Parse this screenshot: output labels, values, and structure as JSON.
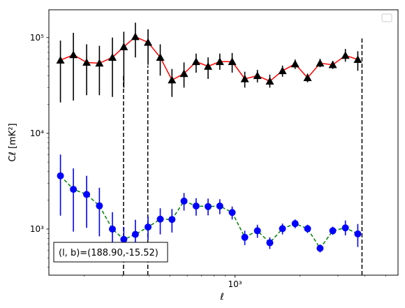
{
  "chart_data": {
    "type": "line",
    "title": "",
    "xlabel": "ℓ",
    "ylabel": "Cℓ  [mK²]",
    "xscale": "log",
    "yscale": "log",
    "xlim": [
      137,
      5700
    ],
    "ylim": [
      330,
      195000
    ],
    "x_tick_labels": [
      {
        "value": 1000,
        "label": "10³"
      }
    ],
    "y_tick_labels": [
      {
        "value": 1000,
        "label": "10³"
      },
      {
        "value": 10000,
        "label": "10⁴"
      },
      {
        "value": 100000,
        "label": "10⁵"
      }
    ],
    "grid": false,
    "legend": "top-right",
    "annotation": "(l, b)=(188.90,-15.52)",
    "vlines": [
      {
        "x": 304,
        "y_top": 40000
      },
      {
        "x": 394,
        "y_top": 51000
      },
      {
        "x": 3880,
        "y_top": 100000
      }
    ],
    "series": [
      {
        "line_color": "#ff0000",
        "marker_color": "#000000",
        "marker": "triangle",
        "line_style": "solid",
        "points": [
          {
            "x": 155,
            "y": 58000,
            "lo": 21000,
            "hi": 93000
          },
          {
            "x": 178,
            "y": 66000,
            "lo": 22000,
            "hi": 112000
          },
          {
            "x": 205,
            "y": 55000,
            "lo": 25000,
            "hi": 85000
          },
          {
            "x": 235,
            "y": 54000,
            "lo": 25000,
            "hi": 82000
          },
          {
            "x": 270,
            "y": 62000,
            "lo": 24000,
            "hi": 100000
          },
          {
            "x": 305,
            "y": 80000,
            "lo": 30000,
            "hi": 115000
          },
          {
            "x": 345,
            "y": 102000,
            "lo": 62000,
            "hi": 143000
          },
          {
            "x": 395,
            "y": 89000,
            "lo": 52000,
            "hi": 122000
          },
          {
            "x": 450,
            "y": 62000,
            "lo": 40000,
            "hi": 85000
          },
          {
            "x": 510,
            "y": 36000,
            "lo": 24000,
            "hi": 47000
          },
          {
            "x": 580,
            "y": 42000,
            "lo": 30000,
            "hi": 55000
          },
          {
            "x": 660,
            "y": 56000,
            "lo": 43000,
            "hi": 68000
          },
          {
            "x": 750,
            "y": 50000,
            "lo": 37000,
            "hi": 62000
          },
          {
            "x": 850,
            "y": 56000,
            "lo": 46000,
            "hi": 68000
          },
          {
            "x": 970,
            "y": 56000,
            "lo": 43000,
            "hi": 69000
          },
          {
            "x": 1110,
            "y": 37000,
            "lo": 30000,
            "hi": 44000
          },
          {
            "x": 1270,
            "y": 40000,
            "lo": 34000,
            "hi": 46000
          },
          {
            "x": 1450,
            "y": 35000,
            "lo": 30000,
            "hi": 41000
          },
          {
            "x": 1660,
            "y": 45000,
            "lo": 39000,
            "hi": 51000
          },
          {
            "x": 1900,
            "y": 53000,
            "lo": 47000,
            "hi": 59000
          },
          {
            "x": 2170,
            "y": 38000,
            "lo": 34000,
            "hi": 42000
          },
          {
            "x": 2480,
            "y": 54000,
            "lo": 49000,
            "hi": 60000
          },
          {
            "x": 2840,
            "y": 52000,
            "lo": 47000,
            "hi": 57000
          },
          {
            "x": 3250,
            "y": 65000,
            "lo": 56000,
            "hi": 76000
          },
          {
            "x": 3710,
            "y": 59000,
            "lo": 45000,
            "hi": 72000
          }
        ]
      },
      {
        "line_color": "#008000",
        "marker_color": "#0000ff",
        "marker": "circle",
        "line_style": "dashed",
        "points": [
          {
            "x": 155,
            "y": 3600,
            "lo": 1380,
            "hi": 6000
          },
          {
            "x": 178,
            "y": 2600,
            "lo": 940,
            "hi": 4300
          },
          {
            "x": 205,
            "y": 2300,
            "lo": 1030,
            "hi": 3600
          },
          {
            "x": 235,
            "y": 1750,
            "lo": 840,
            "hi": 2700
          },
          {
            "x": 270,
            "y": 1000,
            "lo": 590,
            "hi": 1500
          },
          {
            "x": 305,
            "y": 780,
            "lo": 540,
            "hi": 1050
          },
          {
            "x": 345,
            "y": 880,
            "lo": 580,
            "hi": 1250
          },
          {
            "x": 395,
            "y": 1050,
            "lo": 770,
            "hi": 1350
          },
          {
            "x": 450,
            "y": 1270,
            "lo": 880,
            "hi": 1650
          },
          {
            "x": 510,
            "y": 1260,
            "lo": 920,
            "hi": 1620
          },
          {
            "x": 580,
            "y": 1960,
            "lo": 1560,
            "hi": 2380
          },
          {
            "x": 660,
            "y": 1740,
            "lo": 1380,
            "hi": 2100
          },
          {
            "x": 750,
            "y": 1720,
            "lo": 1390,
            "hi": 2080
          },
          {
            "x": 850,
            "y": 1740,
            "lo": 1430,
            "hi": 2050
          },
          {
            "x": 970,
            "y": 1490,
            "lo": 1260,
            "hi": 1720
          },
          {
            "x": 1110,
            "y": 820,
            "lo": 680,
            "hi": 960
          },
          {
            "x": 1270,
            "y": 960,
            "lo": 810,
            "hi": 1110
          },
          {
            "x": 1450,
            "y": 720,
            "lo": 620,
            "hi": 820
          },
          {
            "x": 1660,
            "y": 1010,
            "lo": 880,
            "hi": 1140
          },
          {
            "x": 1900,
            "y": 1140,
            "lo": 1020,
            "hi": 1260
          },
          {
            "x": 2170,
            "y": 1010,
            "lo": 910,
            "hi": 1110
          },
          {
            "x": 2480,
            "y": 630,
            "lo": 570,
            "hi": 690
          },
          {
            "x": 2840,
            "y": 960,
            "lo": 870,
            "hi": 1060
          },
          {
            "x": 3250,
            "y": 1030,
            "lo": 860,
            "hi": 1230
          },
          {
            "x": 3710,
            "y": 890,
            "lo": 650,
            "hi": 1130
          }
        ]
      }
    ]
  }
}
